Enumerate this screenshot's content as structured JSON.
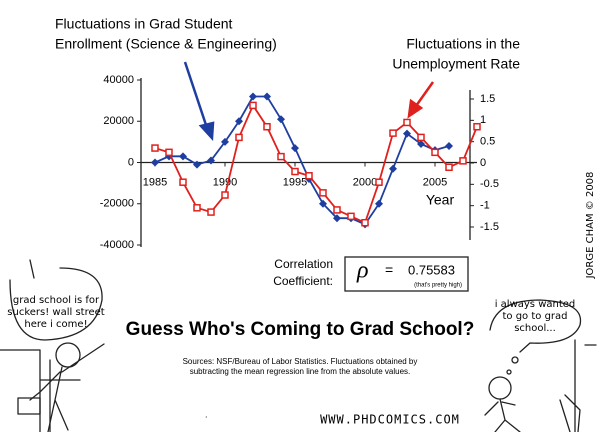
{
  "chart_data": {
    "type": "line",
    "x": [
      1985,
      1986,
      1987,
      1988,
      1989,
      1990,
      1991,
      1992,
      1993,
      1994,
      1995,
      1996,
      1997,
      1998,
      1999,
      2000,
      2001,
      2002,
      2003,
      2004,
      2005,
      2006,
      2007,
      2008
    ],
    "series": [
      {
        "name": "Fluctuations in Grad Student Enrollment (Science & Engineering)",
        "color": "#1f3fa0",
        "marker": "diamond",
        "values": [
          0,
          3000,
          3000,
          -1000,
          1000,
          10000,
          20000,
          32000,
          32000,
          21000,
          7000,
          -8000,
          -20000,
          -27000,
          -27000,
          -30000,
          -20000,
          -3000,
          14000,
          9000,
          6000,
          8000,
          null,
          null
        ]
      },
      {
        "name": "Fluctuations in the Unemployment Rate",
        "color": "#e0201c",
        "marker": "square",
        "axis": "y2",
        "values": [
          0.35,
          0.25,
          -0.45,
          -1.05,
          -1.15,
          -0.75,
          0.6,
          1.35,
          0.85,
          0.15,
          -0.2,
          -0.3,
          -0.7,
          -1.1,
          -1.25,
          -1.4,
          -0.45,
          0.7,
          0.95,
          0.6,
          0.25,
          -0.1,
          0.05,
          0.85
        ]
      }
    ],
    "xlim": [
      1984,
      2008
    ],
    "xticks": [
      1985,
      1990,
      1995,
      2000,
      2005
    ],
    "xlabel": "Year",
    "ylim": [
      -40000,
      40000
    ],
    "yticks": [
      -40000,
      -20000,
      0,
      20000,
      40000
    ],
    "y2lim": [
      -1.5,
      1.5
    ],
    "y2ticks": [
      -1.5,
      -1,
      -0.5,
      0,
      0.5,
      1,
      1.5
    ],
    "annotations": [
      {
        "lines": [
          "Fluctuations in Grad Student",
          "Enrollment (Science & Engineering)"
        ]
      },
      {
        "lines": [
          "Fluctuations in the",
          "Unemployment Rate"
        ]
      }
    ],
    "correlation": {
      "label": [
        "Correlation",
        "Coefficient:"
      ],
      "symbol": "ρ",
      "equals": "=",
      "value": 0.75583,
      "note": "(that's pretty high)"
    }
  },
  "comic": {
    "title": "Guess Who's Coming to Grad School?",
    "sources": [
      "Sources: NSF/Bureau of Labor Statistics. Fluctuations obtained by",
      "subtracting the mean regression line from the absolute values."
    ],
    "bubble_left": [
      "grad school is for",
      "suckers! wall street",
      "here i come!"
    ],
    "bubble_right": [
      "i always wanted",
      "to go to grad",
      "school..."
    ],
    "credit": "JORGE CHAM © 2008",
    "url": "WWW.PHDCOMICS.COM"
  }
}
